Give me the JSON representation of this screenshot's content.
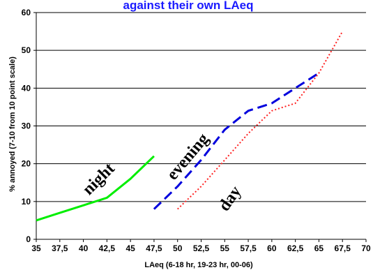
{
  "chart_data": {
    "type": "line",
    "title": "against their own LAeq",
    "xlabel": "LAeq (6-18 hr, 19-23 hr, 00-06)",
    "ylabel": "% annoyed (7-10 from 10 point scale)",
    "xlim": [
      35,
      70
    ],
    "ylim": [
      0,
      60
    ],
    "x_ticks": [
      "35",
      "37,5",
      "40",
      "42,5",
      "45",
      "47,5",
      "50",
      "52,5",
      "55",
      "57,5",
      "60",
      "62,5",
      "65",
      "67,5",
      "70"
    ],
    "y_ticks": [
      "0",
      "10",
      "20",
      "30",
      "40",
      "50",
      "60"
    ],
    "grid": true,
    "legend": "none",
    "series": [
      {
        "name": "night",
        "color": "#00ee00",
        "style": "solid",
        "x": [
          35,
          37.5,
          40,
          42.5,
          45,
          47.5
        ],
        "y": [
          5,
          7,
          9,
          11,
          16,
          22
        ]
      },
      {
        "name": "evening",
        "color": "#0000dd",
        "style": "dashed",
        "x": [
          47.5,
          50,
          52.5,
          55,
          57.5,
          60,
          62.5,
          65
        ],
        "y": [
          8,
          14,
          21,
          29,
          34,
          36,
          40,
          44
        ]
      },
      {
        "name": "day",
        "color": "#ff2020",
        "style": "dotted",
        "x": [
          50,
          52.5,
          55,
          57.5,
          60,
          62.5,
          65,
          67.5
        ],
        "y": [
          8,
          14,
          21,
          28,
          34,
          36,
          44,
          55
        ]
      }
    ],
    "annotations": [
      {
        "text": "night",
        "series": 0
      },
      {
        "text": "evening",
        "series": 1
      },
      {
        "text": "day",
        "series": 2
      }
    ]
  }
}
